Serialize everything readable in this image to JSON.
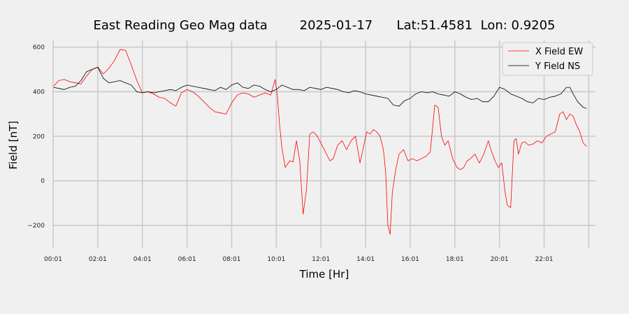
{
  "chart_data": {
    "type": "line",
    "title": "East Reading Geo Mag data        2025-01-17      Lat:51.4581  Lon: 0.9205",
    "xlabel": "Time  [Hr]",
    "ylabel": "Field  [nT]",
    "xlim": [
      0.0,
      24.3
    ],
    "ylim": [
      -300,
      630
    ],
    "x_ticks": [
      "00:01",
      "02:01",
      "04:01",
      "06:01",
      "08:01",
      "10:01",
      "12:01",
      "14:01",
      "16:01",
      "18:01",
      "20:01",
      "22:01"
    ],
    "y_ticks": [
      600,
      400,
      200,
      0,
      -200
    ],
    "y_tick_labels": [
      "600",
      "400",
      "200",
      "0",
      "−200"
    ],
    "grid": true,
    "legend_position": "top-right",
    "series": [
      {
        "name": "X Field EW",
        "color": "#ff0000",
        "x": [
          0.02,
          0.25,
          0.5,
          0.75,
          1.0,
          1.25,
          1.5,
          1.75,
          2.0,
          2.25,
          2.5,
          2.75,
          3.0,
          3.25,
          3.5,
          3.75,
          4.0,
          4.25,
          4.5,
          4.75,
          5.0,
          5.25,
          5.5,
          5.75,
          6.0,
          6.25,
          6.5,
          6.75,
          7.0,
          7.25,
          7.5,
          7.75,
          8.0,
          8.25,
          8.5,
          8.75,
          9.0,
          9.25,
          9.5,
          9.75,
          9.95,
          10.05,
          10.15,
          10.25,
          10.4,
          10.6,
          10.75,
          10.9,
          11.05,
          11.2,
          11.35,
          11.5,
          11.65,
          11.8,
          12.0,
          12.2,
          12.4,
          12.55,
          12.75,
          12.95,
          13.15,
          13.35,
          13.55,
          13.75,
          13.9,
          14.05,
          14.2,
          14.35,
          14.5,
          14.65,
          14.8,
          14.9,
          15.0,
          15.1,
          15.2,
          15.35,
          15.5,
          15.7,
          15.9,
          16.1,
          16.3,
          16.5,
          16.7,
          16.9,
          17.1,
          17.25,
          17.4,
          17.55,
          17.7,
          17.9,
          18.1,
          18.25,
          18.4,
          18.55,
          18.7,
          18.9,
          19.1,
          19.3,
          19.5,
          19.65,
          19.8,
          19.95,
          20.1,
          20.25,
          20.35,
          20.5,
          20.65,
          20.75,
          20.85,
          21.0,
          21.15,
          21.3,
          21.5,
          21.7,
          21.9,
          22.1,
          22.3,
          22.5,
          22.7,
          22.85,
          23.0,
          23.15,
          23.3,
          23.45,
          23.6,
          23.75,
          23.9
        ],
        "values": [
          425,
          450,
          455,
          445,
          440,
          435,
          470,
          500,
          510,
          480,
          505,
          540,
          590,
          585,
          520,
          450,
          395,
          400,
          390,
          375,
          370,
          350,
          335,
          395,
          410,
          400,
          380,
          355,
          330,
          310,
          305,
          300,
          350,
          385,
          395,
          390,
          375,
          385,
          395,
          385,
          455,
          380,
          250,
          150,
          60,
          90,
          85,
          180,
          90,
          -150,
          -40,
          210,
          220,
          205,
          170,
          130,
          90,
          100,
          160,
          180,
          140,
          180,
          200,
          80,
          150,
          220,
          210,
          230,
          220,
          200,
          140,
          40,
          -200,
          -240,
          -50,
          50,
          120,
          140,
          90,
          100,
          90,
          100,
          110,
          130,
          340,
          330,
          200,
          160,
          180,
          100,
          60,
          50,
          60,
          90,
          100,
          120,
          80,
          120,
          180,
          130,
          90,
          60,
          80,
          -50,
          -110,
          -120,
          180,
          190,
          120,
          170,
          175,
          160,
          165,
          180,
          170,
          200,
          210,
          220,
          300,
          310,
          275,
          300,
          290,
          250,
          220,
          170,
          155
        ]
      },
      {
        "name": "Y Field NS",
        "color": "#000000",
        "x": [
          0.02,
          0.25,
          0.5,
          0.75,
          1.0,
          1.25,
          1.5,
          1.75,
          2.0,
          2.25,
          2.5,
          2.75,
          3.0,
          3.25,
          3.5,
          3.75,
          4.0,
          4.25,
          4.5,
          4.75,
          5.0,
          5.25,
          5.5,
          5.75,
          6.0,
          6.25,
          6.5,
          6.75,
          7.0,
          7.25,
          7.5,
          7.75,
          8.0,
          8.25,
          8.5,
          8.75,
          9.0,
          9.25,
          9.5,
          9.75,
          10.0,
          10.25,
          10.5,
          10.75,
          11.0,
          11.25,
          11.5,
          11.75,
          12.0,
          12.25,
          12.5,
          12.75,
          13.0,
          13.25,
          13.5,
          13.75,
          14.0,
          14.25,
          14.5,
          14.75,
          15.0,
          15.25,
          15.5,
          15.75,
          16.0,
          16.25,
          16.5,
          16.75,
          17.0,
          17.25,
          17.5,
          17.75,
          18.0,
          18.25,
          18.5,
          18.75,
          19.0,
          19.25,
          19.5,
          19.75,
          20.0,
          20.25,
          20.5,
          20.75,
          21.0,
          21.25,
          21.5,
          21.75,
          22.0,
          22.25,
          22.5,
          22.75,
          23.0,
          23.15,
          23.3,
          23.5,
          23.75,
          23.9
        ],
        "values": [
          420,
          415,
          410,
          420,
          425,
          450,
          490,
          500,
          510,
          460,
          440,
          445,
          450,
          440,
          430,
          400,
          395,
          400,
          395,
          400,
          405,
          410,
          405,
          420,
          430,
          425,
          420,
          415,
          410,
          405,
          420,
          410,
          430,
          440,
          420,
          415,
          430,
          425,
          410,
          400,
          410,
          430,
          420,
          410,
          410,
          405,
          420,
          415,
          410,
          420,
          415,
          410,
          400,
          395,
          405,
          400,
          390,
          385,
          380,
          375,
          370,
          340,
          335,
          360,
          370,
          390,
          400,
          395,
          400,
          390,
          385,
          380,
          400,
          390,
          375,
          365,
          370,
          355,
          355,
          380,
          420,
          410,
          390,
          380,
          370,
          355,
          350,
          370,
          365,
          375,
          380,
          390,
          420,
          420,
          390,
          355,
          330,
          325
        ]
      }
    ]
  }
}
